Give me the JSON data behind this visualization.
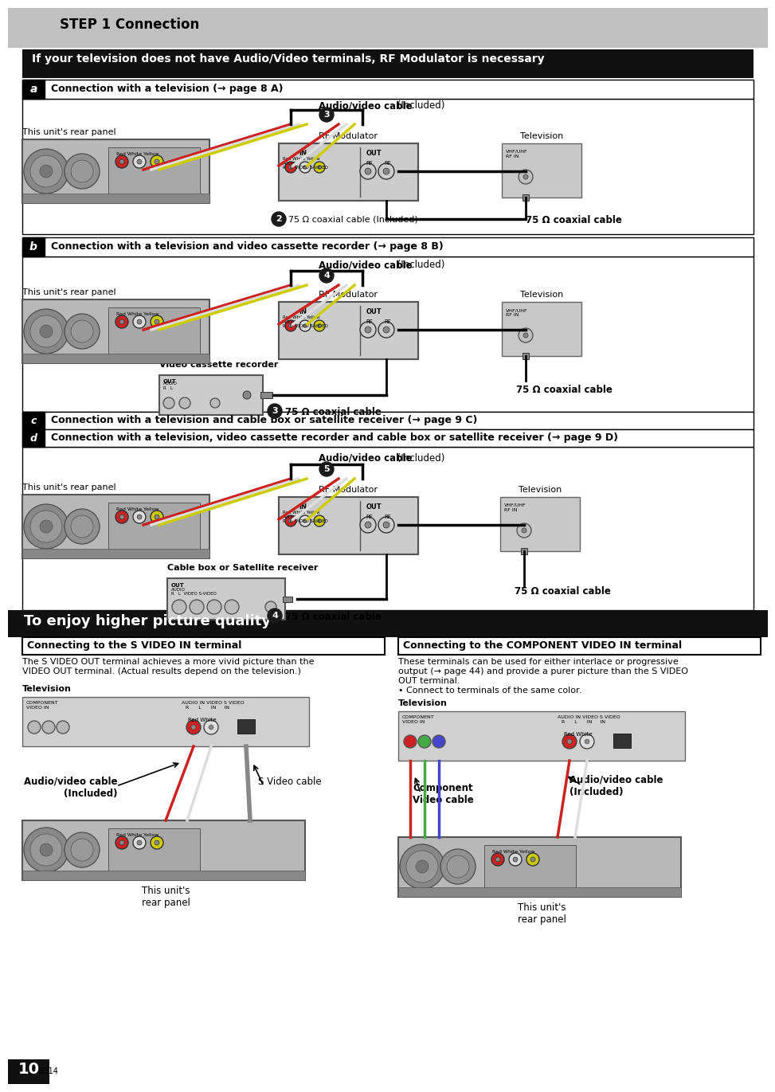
{
  "page_bg": "#ffffff",
  "header_bg": "#c0c0c0",
  "header_text": "STEP 1 Connection",
  "black_banner_text": "If your television does not have Audio/Video terminals, RF Modulator is necessary",
  "section_a_label": "a",
  "section_a_text": "Connection with a television (→ page 8 A)",
  "section_b_label": "b",
  "section_b_text": "Connection with a television and video cassette recorder (→ page 8 B)",
  "section_c_label": "c",
  "section_c_text": "Connection with a television and cable box or satellite receiver (→ page 9 C)",
  "section_d_label": "d",
  "section_d_text": "Connection with a television, video cassette recorder and cable box or satellite receiver (→ page 9 D)",
  "higher_quality_text": "To enjoy higher picture quality",
  "svideo_box_title": "Connecting to the S VIDEO IN terminal",
  "svideo_desc1": "The S VIDEO OUT terminal achieves a more vivid picture than the",
  "svideo_desc2": "VIDEO OUT terminal. (Actual results depend on the television.)",
  "component_box_title": "Connecting to the COMPONENT VIDEO IN terminal",
  "component_desc1": "These terminals can be used for either interlace or progressive",
  "component_desc2": "output (→ page 44) and provide a purer picture than the S VIDEO",
  "component_desc3": "OUT terminal.",
  "component_desc4": "• Connect to terminals of the same color.",
  "television_label": "Television",
  "this_units_rear_panel": "This unit's\nrear panel",
  "s_video_cable": "S Video cable",
  "component_video_cable": "Component\nVideo cable",
  "audio_video_cable_included": "Audio/video cable\n(Included)",
  "rqt_label": "RQT8314",
  "page_number": "10",
  "omega_coax1": "75 Ω coaxial cable (Included)",
  "omega_coax2": "75 Ω coaxial cable",
  "audio_video_cable_bold": "Audio/video cable",
  "audio_video_cable_normal": " (Included)"
}
